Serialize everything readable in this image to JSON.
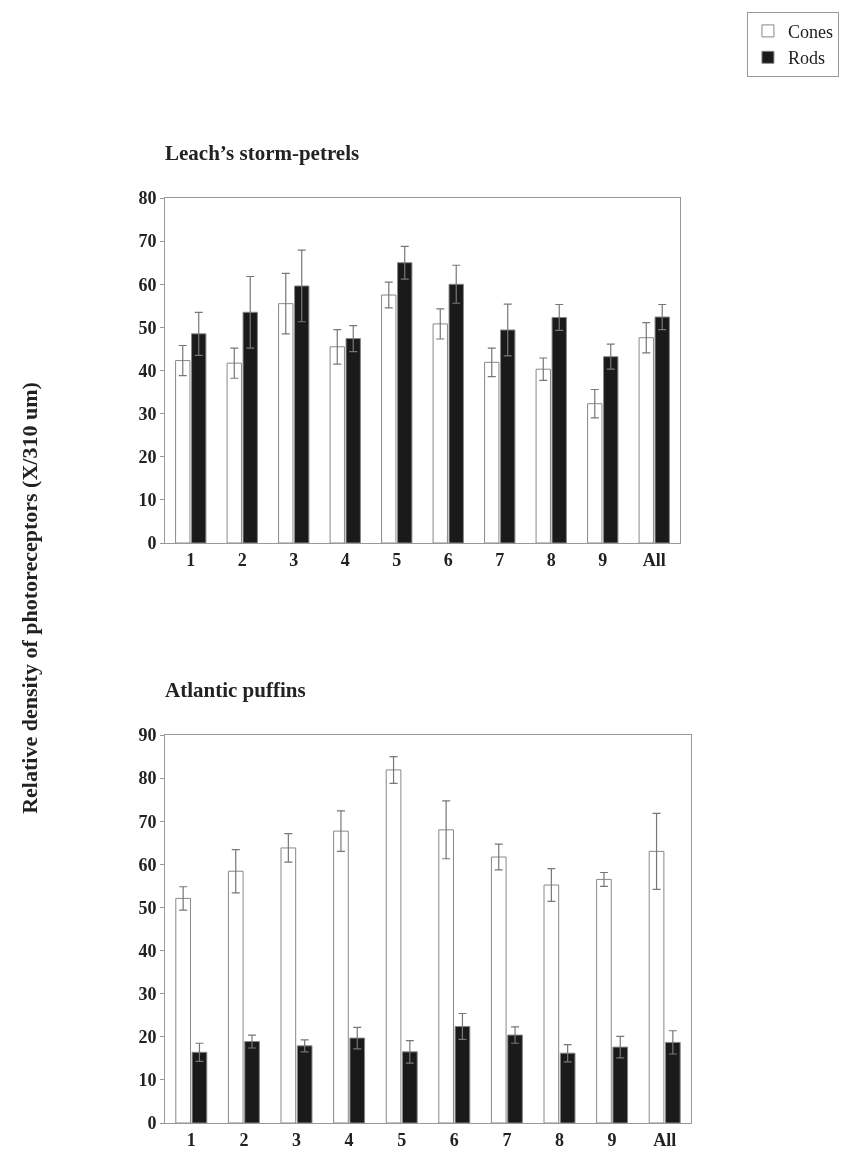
{
  "chart_data": [
    {
      "type": "bar",
      "title": "Leach’s storm-petrels",
      "ylabel": "Relative density of photoreceptors (X/310 um)",
      "categories": [
        "1",
        "2",
        "3",
        "4",
        "5",
        "6",
        "7",
        "8",
        "9",
        "All"
      ],
      "ylim": [
        0,
        80
      ],
      "yticks": [
        0,
        10,
        20,
        30,
        40,
        50,
        60,
        70,
        80
      ],
      "grid": false,
      "legend": "top right",
      "series": [
        {
          "name": "Cones",
          "color": "#ffffff",
          "values": [
            42.3,
            41.7,
            55.5,
            45.5,
            57.5,
            50.8,
            41.9,
            40.3,
            32.3,
            47.6
          ],
          "errors": [
            3.5,
            3.5,
            7,
            4,
            3,
            3.5,
            3.3,
            2.6,
            3.3,
            3.5
          ]
        },
        {
          "name": "Rods",
          "color": "#1a1a1a",
          "values": [
            48.5,
            53.5,
            59.6,
            47.4,
            65,
            60,
            49.4,
            52.3,
            43.2,
            52.4
          ],
          "errors": [
            5,
            8.3,
            8.3,
            3,
            3.8,
            4.4,
            6,
            3,
            2.9,
            2.9
          ]
        }
      ]
    },
    {
      "type": "bar",
      "title": "Atlantic puffins",
      "categories": [
        "1",
        "2",
        "3",
        "4",
        "5",
        "6",
        "7",
        "8",
        "9",
        "All"
      ],
      "ylim": [
        0,
        90
      ],
      "yticks": [
        0,
        10,
        20,
        30,
        40,
        50,
        60,
        70,
        80,
        90
      ],
      "grid": false,
      "legend": false,
      "series": [
        {
          "color": "#ffffff",
          "values": [
            52.1,
            58.4,
            63.8,
            67.7,
            81.9,
            68,
            61.7,
            55.2,
            56.5,
            63
          ],
          "errors": [
            2.7,
            5,
            3.3,
            4.7,
            3.1,
            6.7,
            3,
            3.8,
            1.6,
            8.8
          ]
        },
        {
          "color": "#1a1a1a",
          "values": [
            16.4,
            18.9,
            17.9,
            19.7,
            16.5,
            22.4,
            20.4,
            16.2,
            17.6,
            18.7
          ],
          "errors": [
            2.1,
            1.5,
            1.4,
            2.5,
            2.6,
            3,
            1.9,
            2,
            2.5,
            2.7
          ]
        }
      ]
    }
  ]
}
